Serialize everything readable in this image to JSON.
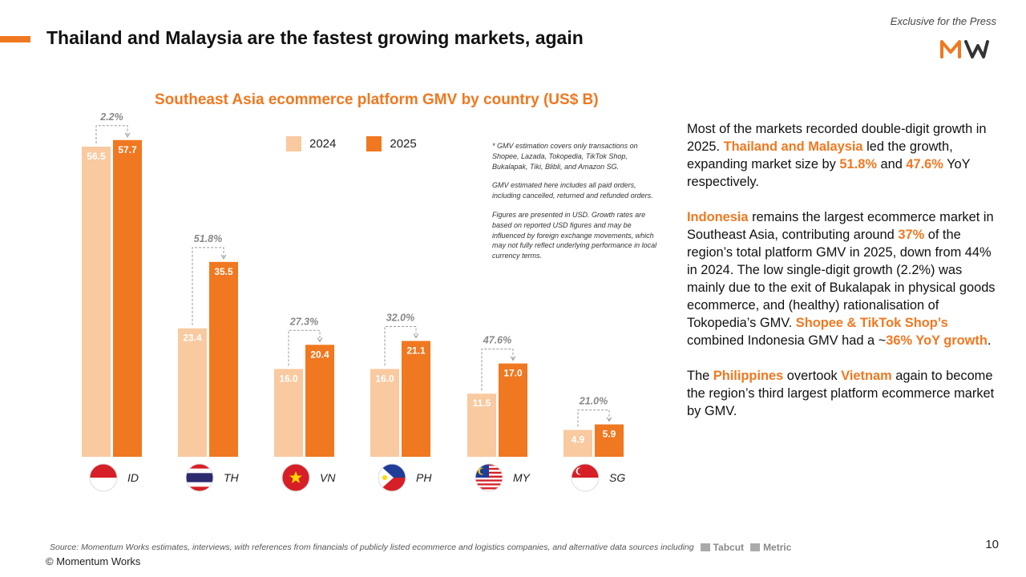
{
  "header": {
    "title": "Thailand and Malaysia are the fastest growing markets, again",
    "press_tag": "Exclusive for the Press"
  },
  "colors": {
    "accent": "#f07820",
    "series_2024": "#f9c9a0",
    "series_2025": "#f07820"
  },
  "chart_data": {
    "type": "bar",
    "title": "Southeast Asia ecommerce platform GMV by country (US$ B)",
    "categories": [
      "ID",
      "TH",
      "VN",
      "PH",
      "MY",
      "SG"
    ],
    "series": [
      {
        "name": "2024",
        "values": [
          56.5,
          23.4,
          16.0,
          16.0,
          11.5,
          4.9
        ],
        "labels": [
          "56.5",
          "23.4",
          "16.0",
          "16.0",
          "11.5",
          "4.9"
        ]
      },
      {
        "name": "2025",
        "values": [
          57.7,
          35.5,
          20.4,
          21.1,
          17.0,
          5.9
        ],
        "labels": [
          "57.7",
          "35.5",
          "20.4",
          "21.1",
          "17.0",
          "5.9"
        ]
      }
    ],
    "growth_labels": [
      "2.2%",
      "51.8%",
      "27.3%",
      "32.0%",
      "47.6%",
      "21.0%"
    ],
    "ylim": [
      0,
      60
    ],
    "legend": "top"
  },
  "notes": [
    "* GMV estimation covers only transactions on Shopee, Lazada, Tokopedia, TikTok Shop, Bukalapak, Tiki, Blibli, and Amazon SG.",
    "GMV estimated here includes all paid orders, including cancelled, returned and refunded orders.",
    "Figures are presented in USD. Growth rates are based on reported USD figures and may be influenced by foreign exchange movements, which may not fully reflect underlying performance in local currency terms."
  ],
  "body": {
    "p1": [
      "Most of the markets recorded double-digit growth in 2025. ",
      "Thailand and Malaysia",
      " led the growth, expanding market size by ",
      "51.8%",
      " and ",
      "47.6%",
      " YoY respectively."
    ],
    "p2": [
      "Indonesia",
      " remains the largest ecommerce market in Southeast Asia, contributing around ",
      "37%",
      " of the region’s total platform GMV in 2025, down from 44% in 2024. The low single-digit growth (2.2%) was mainly due to the exit of Bukalapak in physical goods ecommerce, and (healthy) rationalisation of Tokopedia’s GMV. ",
      "Shopee & TikTok Shop’s",
      " combined Indonesia GMV had a ~",
      "36% YoY growth",
      "."
    ],
    "p3": [
      "The ",
      "Philippines",
      " overtook ",
      "Vietnam",
      " again to become the region’s third largest platform ecommerce market by GMV."
    ]
  },
  "footer": {
    "source": "Source: Momentum Works estimates, interviews, with references from financials of publicly listed ecommerce and logistics companies,  and alternative data sources including",
    "brand1": "Tabcut",
    "brand2": "Metric",
    "copyright": "© Momentum Works",
    "page": "10"
  }
}
